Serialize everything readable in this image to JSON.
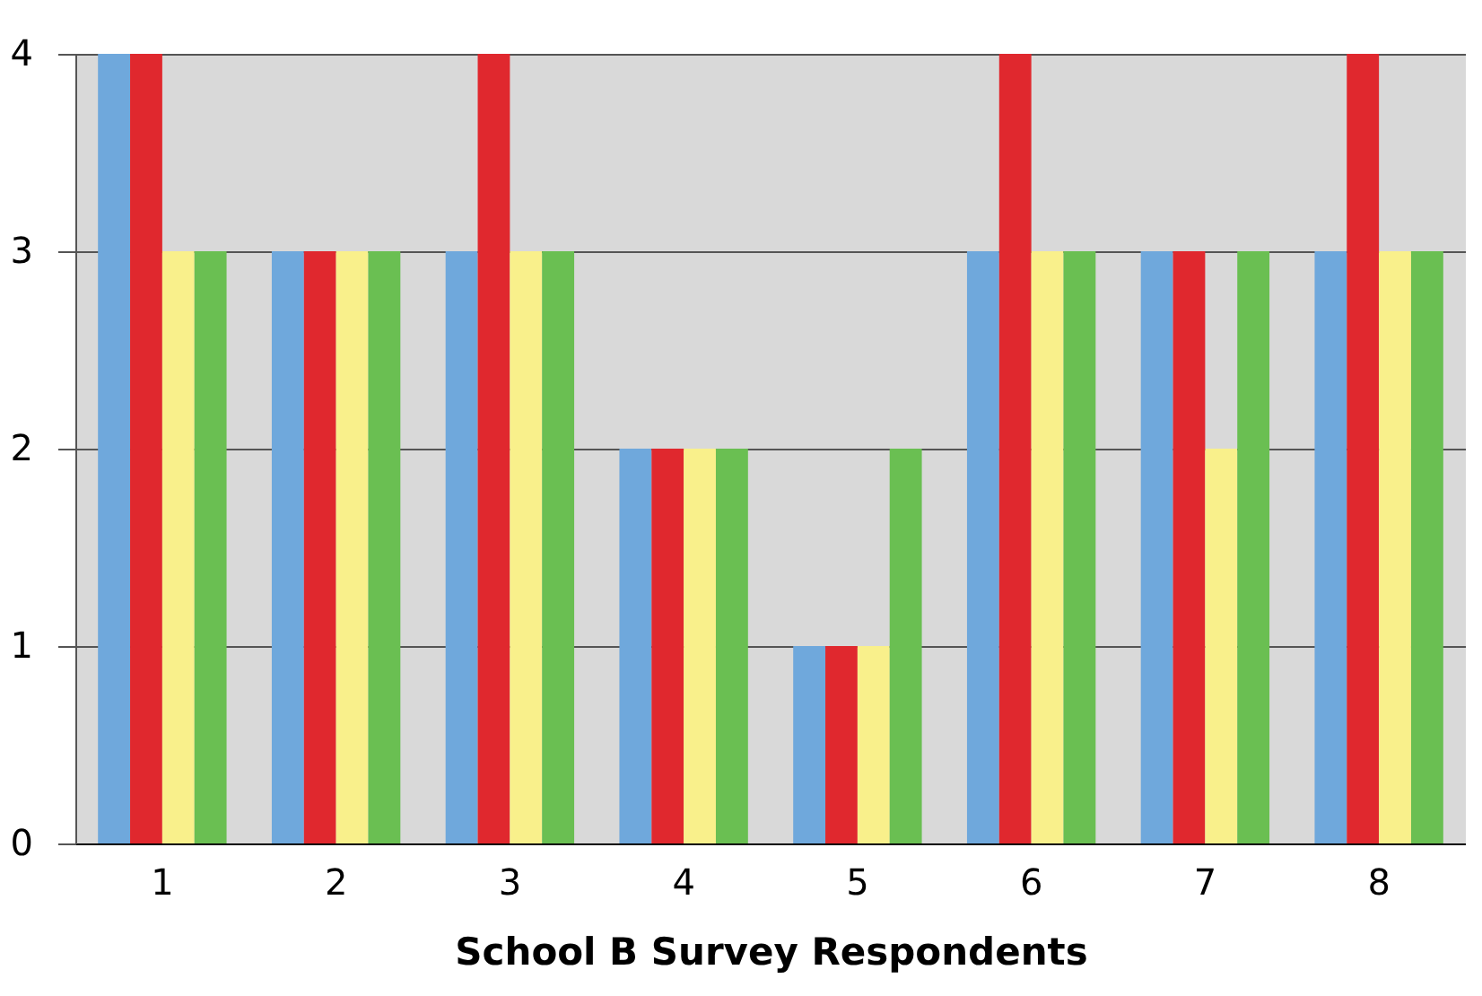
{
  "chart_data": {
    "type": "bar",
    "xlabel": "School B Survey Respondents",
    "categories": [
      "1",
      "2",
      "3",
      "4",
      "5",
      "6",
      "7",
      "8"
    ],
    "series": [
      {
        "color": "#6fa8dc",
        "values": [
          4,
          3,
          3,
          2,
          1,
          3,
          3,
          3
        ]
      },
      {
        "color": "#e0282e",
        "values": [
          4,
          3,
          4,
          2,
          1,
          4,
          3,
          4
        ]
      },
      {
        "color": "#f9f08b",
        "values": [
          3,
          3,
          3,
          2,
          1,
          3,
          2,
          3
        ]
      },
      {
        "color": "#6abf52",
        "values": [
          3,
          3,
          3,
          2,
          2,
          3,
          3,
          3
        ]
      }
    ],
    "ylim": [
      0,
      4
    ],
    "yticks": [
      0,
      1,
      2,
      3,
      4
    ],
    "grid": "y",
    "legend": false
  }
}
